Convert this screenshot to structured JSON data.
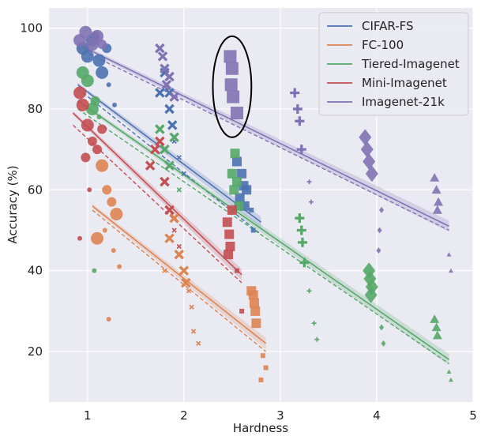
{
  "chart_data": {
    "type": "scatter",
    "title": "",
    "xlabel": "Hardness",
    "ylabel": "Accuracy (%)",
    "xlim": [
      0.6,
      5.0
    ],
    "ylim": [
      7.5,
      105
    ],
    "x_ticks": [
      1,
      2,
      3,
      4,
      5
    ],
    "y_ticks": [
      20,
      40,
      60,
      80,
      100
    ],
    "grid": true,
    "legend_position": "top-right",
    "series": [
      {
        "name": "CIFAR-FS",
        "color": "#4c72b0",
        "fit_solid": {
          "x": [
            0.9,
            2.8
          ],
          "y": [
            86,
            52
          ]
        },
        "fit_dashed": {
          "x": [
            0.9,
            2.8
          ],
          "y": [
            85,
            49
          ]
        },
        "points": [
          {
            "x": 0.95,
            "y": 95,
            "m": "o",
            "s": "l"
          },
          {
            "x": 1.0,
            "y": 93,
            "m": "o",
            "s": "l"
          },
          {
            "x": 1.05,
            "y": 97,
            "m": "o",
            "s": "l"
          },
          {
            "x": 1.12,
            "y": 92,
            "m": "o",
            "s": "l"
          },
          {
            "x": 1.15,
            "y": 89,
            "m": "o",
            "s": "l"
          },
          {
            "x": 1.2,
            "y": 95,
            "m": "o",
            "s": "m"
          },
          {
            "x": 1.22,
            "y": 86,
            "m": "o",
            "s": "s"
          },
          {
            "x": 1.28,
            "y": 81,
            "m": "o",
            "s": "s"
          },
          {
            "x": 1.08,
            "y": 98,
            "m": "o",
            "s": "m"
          },
          {
            "x": 1.75,
            "y": 84,
            "m": "x",
            "s": "m"
          },
          {
            "x": 1.8,
            "y": 89,
            "m": "x",
            "s": "m"
          },
          {
            "x": 1.85,
            "y": 80,
            "m": "x",
            "s": "m"
          },
          {
            "x": 1.88,
            "y": 76,
            "m": "x",
            "s": "m"
          },
          {
            "x": 1.9,
            "y": 72,
            "m": "x",
            "s": "s"
          },
          {
            "x": 1.95,
            "y": 68,
            "m": "x",
            "s": "s"
          },
          {
            "x": 2.0,
            "y": 64,
            "m": "x",
            "s": "s"
          },
          {
            "x": 1.85,
            "y": 84,
            "m": "x",
            "s": "m"
          },
          {
            "x": 2.55,
            "y": 67,
            "m": "sq",
            "s": "m"
          },
          {
            "x": 2.6,
            "y": 64,
            "m": "sq",
            "s": "m"
          },
          {
            "x": 2.62,
            "y": 61,
            "m": "sq",
            "s": "m"
          },
          {
            "x": 2.58,
            "y": 58,
            "m": "sq",
            "s": "m"
          },
          {
            "x": 2.63,
            "y": 56,
            "m": "sq",
            "s": "m"
          },
          {
            "x": 2.65,
            "y": 60,
            "m": "sq",
            "s": "m"
          },
          {
            "x": 2.7,
            "y": 55,
            "m": "sq",
            "s": "s"
          },
          {
            "x": 2.72,
            "y": 50,
            "m": "sq",
            "s": "s"
          }
        ]
      },
      {
        "name": "FC-100",
        "color": "#dd8452",
        "fit_solid": {
          "x": [
            1.05,
            2.85
          ],
          "y": [
            56,
            22
          ]
        },
        "fit_dashed": {
          "x": [
            1.05,
            2.85
          ],
          "y": [
            55,
            20
          ]
        },
        "points": [
          {
            "x": 1.1,
            "y": 48,
            "m": "o",
            "s": "l"
          },
          {
            "x": 1.15,
            "y": 66,
            "m": "o",
            "s": "l"
          },
          {
            "x": 1.2,
            "y": 60,
            "m": "o",
            "s": "m"
          },
          {
            "x": 1.25,
            "y": 57,
            "m": "o",
            "s": "m"
          },
          {
            "x": 1.3,
            "y": 54,
            "m": "o",
            "s": "l"
          },
          {
            "x": 1.18,
            "y": 50,
            "m": "o",
            "s": "s"
          },
          {
            "x": 1.27,
            "y": 45,
            "m": "o",
            "s": "s"
          },
          {
            "x": 1.22,
            "y": 28,
            "m": "o",
            "s": "s"
          },
          {
            "x": 1.33,
            "y": 41,
            "m": "o",
            "s": "s"
          },
          {
            "x": 1.85,
            "y": 48,
            "m": "x",
            "s": "m"
          },
          {
            "x": 1.9,
            "y": 53,
            "m": "x",
            "s": "m"
          },
          {
            "x": 1.95,
            "y": 44,
            "m": "x",
            "s": "m"
          },
          {
            "x": 2.0,
            "y": 40,
            "m": "x",
            "s": "m"
          },
          {
            "x": 2.02,
            "y": 37,
            "m": "x",
            "s": "m"
          },
          {
            "x": 2.05,
            "y": 35,
            "m": "x",
            "s": "s"
          },
          {
            "x": 2.08,
            "y": 31,
            "m": "x",
            "s": "s"
          },
          {
            "x": 1.8,
            "y": 40,
            "m": "x",
            "s": "s"
          },
          {
            "x": 2.1,
            "y": 25,
            "m": "x",
            "s": "s"
          },
          {
            "x": 2.15,
            "y": 22,
            "m": "x",
            "s": "s"
          },
          {
            "x": 2.72,
            "y": 34,
            "m": "sq",
            "s": "m"
          },
          {
            "x": 2.73,
            "y": 32,
            "m": "sq",
            "s": "m"
          },
          {
            "x": 2.74,
            "y": 30,
            "m": "sq",
            "s": "m"
          },
          {
            "x": 2.75,
            "y": 27,
            "m": "sq",
            "s": "m"
          },
          {
            "x": 2.7,
            "y": 35,
            "m": "sq",
            "s": "m"
          },
          {
            "x": 2.82,
            "y": 19,
            "m": "sq",
            "s": "s"
          },
          {
            "x": 2.85,
            "y": 16,
            "m": "sq",
            "s": "s"
          },
          {
            "x": 2.8,
            "y": 13,
            "m": "sq",
            "s": "s"
          }
        ]
      },
      {
        "name": "Tiered-Imagenet",
        "color": "#55a868",
        "fit_solid": {
          "x": [
            0.9,
            4.75
          ],
          "y": [
            82,
            18
          ]
        },
        "fit_dashed": {
          "x": [
            0.9,
            4.75
          ],
          "y": [
            80,
            17
          ]
        },
        "points": [
          {
            "x": 0.95,
            "y": 89,
            "m": "o",
            "s": "l"
          },
          {
            "x": 1.0,
            "y": 87,
            "m": "o",
            "s": "l"
          },
          {
            "x": 1.05,
            "y": 80,
            "m": "o",
            "s": "l"
          },
          {
            "x": 1.08,
            "y": 82,
            "m": "o",
            "s": "m"
          },
          {
            "x": 1.12,
            "y": 78,
            "m": "o",
            "s": "s"
          },
          {
            "x": 1.07,
            "y": 40,
            "m": "o",
            "s": "s"
          },
          {
            "x": 1.75,
            "y": 75,
            "m": "x",
            "s": "m"
          },
          {
            "x": 1.8,
            "y": 70,
            "m": "x",
            "s": "m"
          },
          {
            "x": 1.85,
            "y": 66,
            "m": "x",
            "s": "m"
          },
          {
            "x": 1.9,
            "y": 73,
            "m": "x",
            "s": "m"
          },
          {
            "x": 1.95,
            "y": 60,
            "m": "x",
            "s": "s"
          },
          {
            "x": 2.53,
            "y": 69,
            "m": "sq",
            "s": "m"
          },
          {
            "x": 2.5,
            "y": 64,
            "m": "sq",
            "s": "m"
          },
          {
            "x": 2.55,
            "y": 62,
            "m": "sq",
            "s": "m"
          },
          {
            "x": 2.52,
            "y": 60,
            "m": "sq",
            "s": "m"
          },
          {
            "x": 2.57,
            "y": 56,
            "m": "sq",
            "s": "m"
          },
          {
            "x": 3.2,
            "y": 53,
            "m": "+",
            "s": "m"
          },
          {
            "x": 3.22,
            "y": 50,
            "m": "+",
            "s": "m"
          },
          {
            "x": 3.23,
            "y": 47,
            "m": "+",
            "s": "m"
          },
          {
            "x": 3.25,
            "y": 42,
            "m": "+",
            "s": "m"
          },
          {
            "x": 3.3,
            "y": 35,
            "m": "+",
            "s": "s"
          },
          {
            "x": 3.35,
            "y": 27,
            "m": "+",
            "s": "s"
          },
          {
            "x": 3.38,
            "y": 23,
            "m": "+",
            "s": "s"
          },
          {
            "x": 3.92,
            "y": 40,
            "m": "d",
            "s": "l"
          },
          {
            "x": 3.93,
            "y": 38,
            "m": "d",
            "s": "l"
          },
          {
            "x": 3.95,
            "y": 36,
            "m": "d",
            "s": "l"
          },
          {
            "x": 3.94,
            "y": 34,
            "m": "d",
            "s": "l"
          },
          {
            "x": 4.05,
            "y": 26,
            "m": "d",
            "s": "s"
          },
          {
            "x": 4.07,
            "y": 22,
            "m": "d",
            "s": "s"
          },
          {
            "x": 4.6,
            "y": 28,
            "m": "t",
            "s": "m"
          },
          {
            "x": 4.62,
            "y": 26,
            "m": "t",
            "s": "m"
          },
          {
            "x": 4.63,
            "y": 24,
            "m": "t",
            "s": "m"
          },
          {
            "x": 4.75,
            "y": 15,
            "m": "t",
            "s": "s"
          },
          {
            "x": 4.77,
            "y": 13,
            "m": "t",
            "s": "s"
          }
        ]
      },
      {
        "name": "Mini-Imagenet",
        "color": "#c44e52",
        "fit_solid": {
          "x": [
            0.85,
            2.6
          ],
          "y": [
            79,
            39
          ]
        },
        "fit_dashed": {
          "x": [
            0.85,
            2.6
          ],
          "y": [
            76,
            37
          ]
        },
        "points": [
          {
            "x": 0.92,
            "y": 84,
            "m": "o",
            "s": "l"
          },
          {
            "x": 0.95,
            "y": 81,
            "m": "o",
            "s": "l"
          },
          {
            "x": 1.0,
            "y": 76,
            "m": "o",
            "s": "l"
          },
          {
            "x": 1.05,
            "y": 72,
            "m": "o",
            "s": "m"
          },
          {
            "x": 1.1,
            "y": 70,
            "m": "o",
            "s": "m"
          },
          {
            "x": 1.15,
            "y": 75,
            "m": "o",
            "s": "m"
          },
          {
            "x": 0.98,
            "y": 68,
            "m": "o",
            "s": "m"
          },
          {
            "x": 1.02,
            "y": 60,
            "m": "o",
            "s": "s"
          },
          {
            "x": 0.92,
            "y": 48,
            "m": "o",
            "s": "s"
          },
          {
            "x": 1.65,
            "y": 66,
            "m": "x",
            "s": "m"
          },
          {
            "x": 1.7,
            "y": 70,
            "m": "x",
            "s": "m"
          },
          {
            "x": 1.75,
            "y": 72,
            "m": "x",
            "s": "m"
          },
          {
            "x": 1.8,
            "y": 62,
            "m": "x",
            "s": "m"
          },
          {
            "x": 1.85,
            "y": 55,
            "m": "x",
            "s": "m"
          },
          {
            "x": 1.9,
            "y": 50,
            "m": "x",
            "s": "s"
          },
          {
            "x": 1.95,
            "y": 46,
            "m": "x",
            "s": "s"
          },
          {
            "x": 2.45,
            "y": 52,
            "m": "sq",
            "s": "m"
          },
          {
            "x": 2.47,
            "y": 49,
            "m": "sq",
            "s": "m"
          },
          {
            "x": 2.48,
            "y": 46,
            "m": "sq",
            "s": "m"
          },
          {
            "x": 2.46,
            "y": 44,
            "m": "sq",
            "s": "m"
          },
          {
            "x": 2.5,
            "y": 55,
            "m": "sq",
            "s": "m"
          },
          {
            "x": 2.55,
            "y": 40,
            "m": "sq",
            "s": "s"
          },
          {
            "x": 2.6,
            "y": 30,
            "m": "sq",
            "s": "s"
          }
        ]
      },
      {
        "name": "Imagenet-21k",
        "color": "#8172b3",
        "fit_solid": {
          "x": [
            0.9,
            4.75
          ],
          "y": [
            96,
            51
          ]
        },
        "fit_dashed": {
          "x": [
            0.9,
            4.75
          ],
          "y": [
            95,
            50
          ]
        },
        "points": [
          {
            "x": 0.92,
            "y": 97,
            "m": "o",
            "s": "l"
          },
          {
            "x": 0.98,
            "y": 99,
            "m": "o",
            "s": "l"
          },
          {
            "x": 1.05,
            "y": 96,
            "m": "o",
            "s": "l"
          },
          {
            "x": 1.1,
            "y": 98,
            "m": "o",
            "s": "l"
          },
          {
            "x": 1.15,
            "y": 96,
            "m": "o",
            "s": "m"
          },
          {
            "x": 1.75,
            "y": 95,
            "m": "x",
            "s": "m"
          },
          {
            "x": 1.78,
            "y": 93,
            "m": "x",
            "s": "m"
          },
          {
            "x": 1.8,
            "y": 90,
            "m": "x",
            "s": "m"
          },
          {
            "x": 1.82,
            "y": 86,
            "m": "x",
            "s": "m"
          },
          {
            "x": 1.85,
            "y": 88,
            "m": "x",
            "s": "m"
          },
          {
            "x": 1.9,
            "y": 83,
            "m": "x",
            "s": "m"
          },
          {
            "x": 2.48,
            "y": 93,
            "m": "sq",
            "s": "l"
          },
          {
            "x": 2.5,
            "y": 90,
            "m": "sq",
            "s": "l"
          },
          {
            "x": 2.49,
            "y": 86,
            "m": "sq",
            "s": "l"
          },
          {
            "x": 2.51,
            "y": 83,
            "m": "sq",
            "s": "l"
          },
          {
            "x": 2.55,
            "y": 79,
            "m": "sq",
            "s": "l"
          },
          {
            "x": 3.15,
            "y": 84,
            "m": "+",
            "s": "m"
          },
          {
            "x": 3.18,
            "y": 80,
            "m": "+",
            "s": "m"
          },
          {
            "x": 3.2,
            "y": 77,
            "m": "+",
            "s": "m"
          },
          {
            "x": 3.22,
            "y": 70,
            "m": "+",
            "s": "m"
          },
          {
            "x": 3.3,
            "y": 62,
            "m": "+",
            "s": "s"
          },
          {
            "x": 3.32,
            "y": 57,
            "m": "+",
            "s": "s"
          },
          {
            "x": 3.88,
            "y": 73,
            "m": "d",
            "s": "l"
          },
          {
            "x": 3.9,
            "y": 70,
            "m": "d",
            "s": "l"
          },
          {
            "x": 3.92,
            "y": 67,
            "m": "d",
            "s": "l"
          },
          {
            "x": 3.95,
            "y": 64,
            "m": "d",
            "s": "l"
          },
          {
            "x": 4.05,
            "y": 55,
            "m": "d",
            "s": "s"
          },
          {
            "x": 4.03,
            "y": 50,
            "m": "d",
            "s": "s"
          },
          {
            "x": 4.02,
            "y": 45,
            "m": "d",
            "s": "s"
          },
          {
            "x": 4.6,
            "y": 63,
            "m": "t",
            "s": "m"
          },
          {
            "x": 4.62,
            "y": 60,
            "m": "t",
            "s": "m"
          },
          {
            "x": 4.64,
            "y": 57,
            "m": "t",
            "s": "m"
          },
          {
            "x": 4.63,
            "y": 55,
            "m": "t",
            "s": "m"
          },
          {
            "x": 4.75,
            "y": 44,
            "m": "t",
            "s": "s"
          },
          {
            "x": 4.77,
            "y": 40,
            "m": "t",
            "s": "s"
          }
        ]
      }
    ],
    "annotations": [
      {
        "type": "ellipse",
        "cx": 2.5,
        "cy": 85.5,
        "rx": 0.2,
        "ry": 12.5,
        "color": "#000000"
      }
    ]
  }
}
